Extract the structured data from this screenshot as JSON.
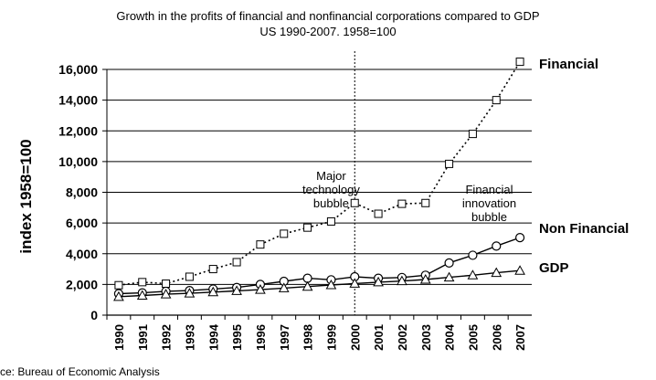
{
  "chart_data": {
    "type": "line",
    "title": "Growth in the profits of financial and nonfinancial corporations compared to GDP",
    "subtitle": "US 1990-2007. 1958=100",
    "ylabel": "index 1958=100",
    "xlabel": "",
    "ylim": [
      0,
      16000
    ],
    "yticks": [
      "0",
      "2,000",
      "4,000",
      "6,000",
      "8,000",
      "10,000",
      "12,000",
      "14,000",
      "16,000"
    ],
    "ytick_values": [
      0,
      2000,
      4000,
      6000,
      8000,
      10000,
      12000,
      14000,
      16000
    ],
    "grid": "horizontal",
    "x": [
      "1990",
      "1991",
      "1992",
      "1993",
      "1994",
      "1995",
      "1996",
      "1997",
      "1998",
      "1999",
      "2000",
      "2001",
      "2002",
      "2003",
      "2004",
      "2005",
      "2006",
      "2007"
    ],
    "series": [
      {
        "name": "Financial",
        "marker": "square",
        "line_style": "dotted",
        "values": [
          1950,
          2150,
          2050,
          2500,
          3000,
          3450,
          4600,
          5300,
          5700,
          6100,
          7300,
          6600,
          7250,
          7300,
          9850,
          11800,
          14000,
          16500
        ]
      },
      {
        "name": "Non Financial",
        "marker": "circle",
        "line_style": "solid",
        "values": [
          1400,
          1450,
          1550,
          1600,
          1700,
          1800,
          2000,
          2200,
          2400,
          2300,
          2500,
          2400,
          2450,
          2600,
          3400,
          3900,
          4500,
          5050
        ]
      },
      {
        "name": "GDP",
        "marker": "triangle",
        "line_style": "solid",
        "values": [
          1200,
          1280,
          1360,
          1420,
          1500,
          1580,
          1660,
          1760,
          1860,
          1960,
          2060,
          2150,
          2220,
          2320,
          2460,
          2600,
          2760,
          2900
        ]
      }
    ],
    "reference_line": {
      "x": "2000",
      "style": "dotted"
    },
    "annotations": [
      {
        "lines": [
          "Major",
          "technology",
          "bubble"
        ],
        "x": "1999",
        "y": 8800
      },
      {
        "lines": [
          "Financial",
          "innovation",
          "bubble"
        ],
        "x": "2005.7",
        "y": 7900
      }
    ],
    "source": "ce: Bureau of Economic Analysis",
    "colors": {
      "line": "#000000",
      "grid": "#000000",
      "marker_fill": "#ffffff"
    }
  }
}
